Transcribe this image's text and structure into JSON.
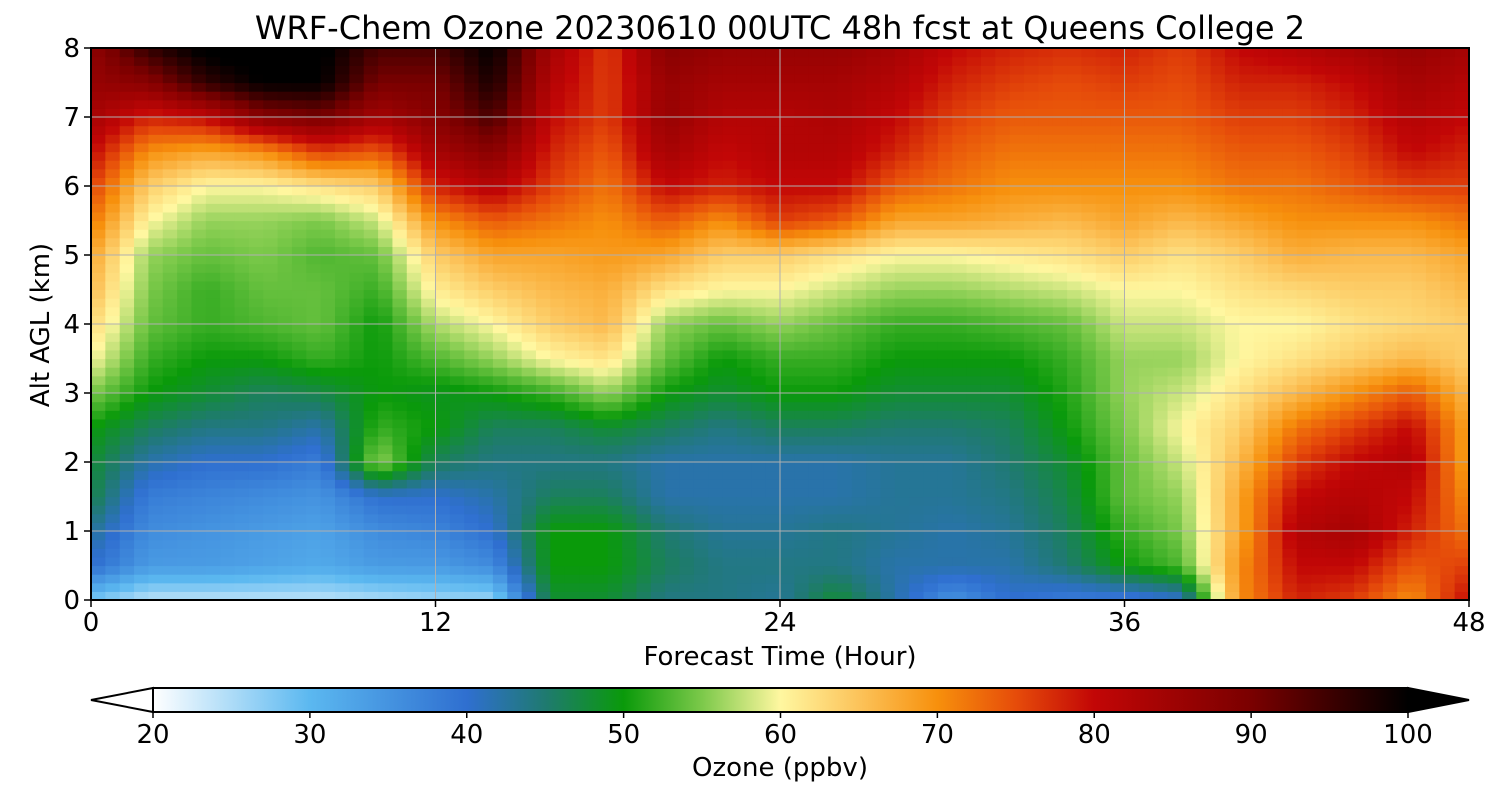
{
  "chart_data": {
    "type": "heatmap",
    "title": "WRF-Chem Ozone  20230610 00UTC 48h fcst at Queens College 2",
    "xlabel": "Forecast Time (Hour)",
    "ylabel": "Alt AGL (km)",
    "xlim": [
      0,
      48
    ],
    "ylim": [
      0,
      8
    ],
    "xticks": [
      "0",
      "12",
      "24",
      "36",
      "48"
    ],
    "yticks": [
      "0",
      "1",
      "2",
      "3",
      "4",
      "5",
      "6",
      "7",
      "8"
    ],
    "grid": true,
    "colorbar": {
      "label": "Ozone  (ppbv)",
      "min": 20,
      "max": 100,
      "ticks": [
        "20",
        "30",
        "40",
        "50",
        "60",
        "70",
        "80",
        "90",
        "100"
      ],
      "extend": "both",
      "colors": [
        {
          "v": 20,
          "c": "#ffffff"
        },
        {
          "v": 30,
          "c": "#5bb8f0"
        },
        {
          "v": 40,
          "c": "#2f6fd0"
        },
        {
          "v": 45,
          "c": "#1f7a70"
        },
        {
          "v": 50,
          "c": "#0a9a0a"
        },
        {
          "v": 55,
          "c": "#7cc94a"
        },
        {
          "v": 60,
          "c": "#fff7a0"
        },
        {
          "v": 65,
          "c": "#fcc35a"
        },
        {
          "v": 70,
          "c": "#f7900c"
        },
        {
          "v": 75,
          "c": "#e64c0a"
        },
        {
          "v": 80,
          "c": "#c20606"
        },
        {
          "v": 90,
          "c": "#7a0000"
        },
        {
          "v": 100,
          "c": "#000000"
        }
      ]
    },
    "x_hours": [
      0,
      2,
      4,
      6,
      8,
      10,
      12,
      14,
      16,
      18,
      20,
      22,
      24,
      26,
      28,
      30,
      32,
      34,
      36,
      38,
      40,
      42,
      44,
      46,
      48
    ],
    "z_km": [
      0,
      0.5,
      1,
      1.5,
      2,
      2.5,
      3,
      3.5,
      4,
      4.5,
      5,
      5.5,
      6,
      6.5,
      7,
      7.5,
      8
    ],
    "values_ppbv": [
      [
        28,
        40,
        43,
        47,
        48,
        50,
        55,
        60,
        63,
        66,
        68,
        72,
        76,
        80,
        84,
        86,
        87
      ],
      [
        24,
        34,
        36,
        38,
        42,
        46,
        50,
        52,
        54,
        55,
        56,
        60,
        64,
        70,
        78,
        88,
        96
      ],
      [
        24,
        34,
        35,
        37,
        40,
        44,
        48,
        50,
        52,
        52,
        54,
        56,
        60,
        68,
        80,
        96,
        101
      ],
      [
        24,
        33,
        34,
        36,
        40,
        44,
        46,
        50,
        53,
        54,
        55,
        56,
        60,
        70,
        88,
        100,
        102
      ],
      [
        24,
        32,
        33,
        35,
        38,
        42,
        47,
        52,
        54,
        54,
        53,
        55,
        62,
        76,
        90,
        100,
        101
      ],
      [
        25,
        34,
        36,
        40,
        56,
        52,
        50,
        50,
        50,
        52,
        54,
        58,
        64,
        74,
        84,
        90,
        94
      ],
      [
        26,
        34,
        37,
        40,
        46,
        50,
        49,
        53,
        57,
        61,
        64,
        70,
        78,
        84,
        88,
        90,
        94
      ],
      [
        26,
        36,
        40,
        42,
        44,
        46,
        50,
        56,
        60,
        64,
        68,
        74,
        82,
        88,
        94,
        98,
        100
      ],
      [
        48,
        50,
        50,
        46,
        44,
        46,
        52,
        60,
        64,
        66,
        68,
        72,
        76,
        78,
        80,
        82,
        84
      ],
      [
        48,
        50,
        50,
        46,
        44,
        48,
        56,
        62,
        66,
        67,
        69,
        70,
        72,
        74,
        76,
        76,
        76
      ],
      [
        44,
        46,
        45,
        42,
        42,
        46,
        50,
        54,
        56,
        62,
        68,
        74,
        80,
        84,
        86,
        86,
        88
      ],
      [
        44,
        44,
        43,
        42,
        42,
        44,
        48,
        50,
        54,
        60,
        64,
        70,
        78,
        80,
        82,
        84,
        86
      ],
      [
        43,
        44,
        43,
        42,
        42,
        46,
        50,
        52,
        56,
        60,
        64,
        76,
        80,
        82,
        82,
        84,
        86
      ],
      [
        48,
        44,
        44,
        42,
        42,
        46,
        50,
        52,
        54,
        58,
        62,
        74,
        80,
        82,
        83,
        84,
        86
      ],
      [
        42,
        42,
        43,
        43,
        43,
        45,
        48,
        50,
        52,
        56,
        60,
        68,
        74,
        78,
        80,
        82,
        84
      ],
      [
        35,
        42,
        42,
        43,
        43,
        45,
        48,
        50,
        52,
        56,
        60,
        68,
        72,
        74,
        76,
        78,
        80
      ],
      [
        40,
        42,
        43,
        44,
        45,
        46,
        48,
        50,
        53,
        57,
        61,
        67,
        70,
        72,
        74,
        76,
        78
      ],
      [
        38,
        45,
        46,
        47,
        48,
        50,
        51,
        52,
        54,
        58,
        62,
        66,
        70,
        72,
        74,
        75,
        77
      ],
      [
        38,
        50,
        52,
        54,
        54,
        55,
        56,
        56,
        58,
        60,
        64,
        68,
        70,
        72,
        74,
        76,
        78
      ],
      [
        40,
        53,
        55,
        56,
        58,
        60,
        58,
        56,
        58,
        60,
        62,
        66,
        70,
        72,
        74,
        75,
        76
      ],
      [
        70,
        70,
        68,
        68,
        66,
        64,
        62,
        60,
        60,
        62,
        64,
        68,
        72,
        74,
        76,
        78,
        80
      ],
      [
        78,
        80,
        82,
        80,
        76,
        72,
        66,
        62,
        60,
        63,
        67,
        70,
        72,
        74,
        76,
        78,
        82
      ],
      [
        76,
        80,
        84,
        82,
        80,
        76,
        70,
        64,
        62,
        64,
        66,
        70,
        74,
        76,
        78,
        80,
        84
      ],
      [
        70,
        74,
        78,
        80,
        82,
        80,
        74,
        66,
        63,
        64,
        66,
        70,
        76,
        80,
        82,
        84,
        86
      ],
      [
        80,
        76,
        72,
        70,
        68,
        68,
        66,
        64,
        64,
        66,
        68,
        72,
        76,
        78,
        80,
        82,
        84
      ]
    ]
  }
}
